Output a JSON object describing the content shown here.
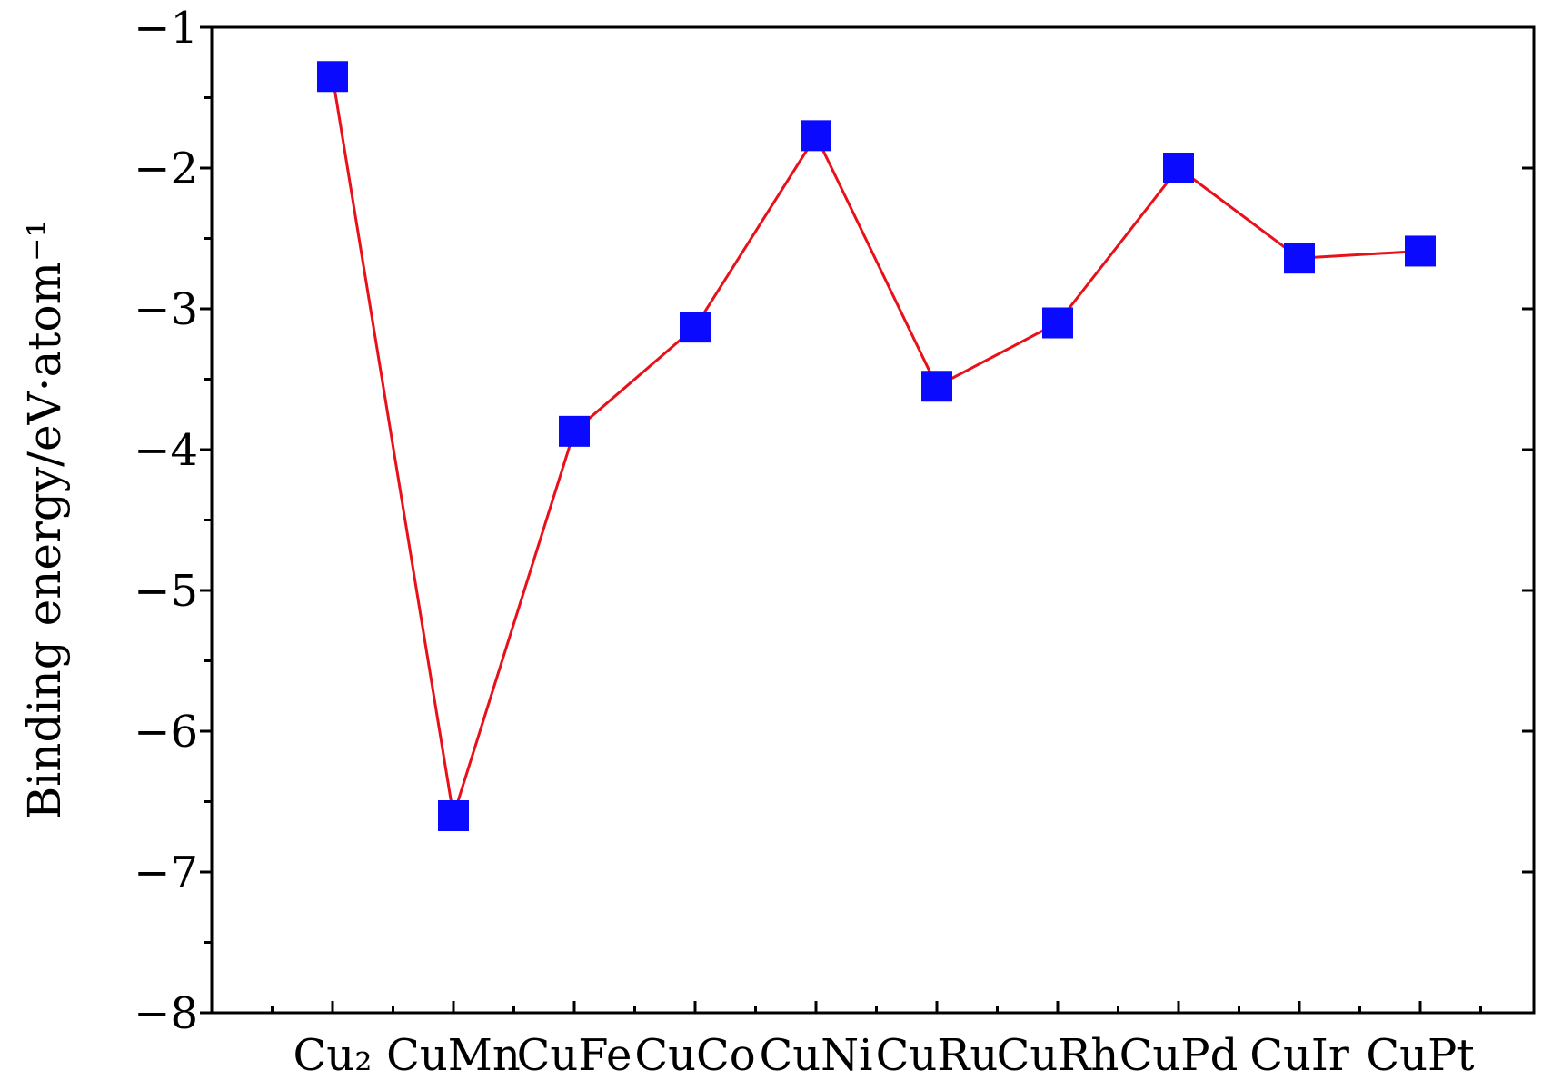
{
  "chart_data": {
    "type": "line",
    "title": "",
    "xlabel": "",
    "ylabel": "Binding energy/eV·atom⁻¹",
    "categories": [
      "Cu₂",
      "CuMn",
      "CuFe",
      "CuCo",
      "CuNi",
      "CuRu",
      "CuRh",
      "CuPd",
      "CuIr",
      "CuPt"
    ],
    "series": [
      {
        "values": [
          -1.35,
          -6.6,
          -3.87,
          -3.13,
          -1.77,
          -3.55,
          -3.1,
          -2.0,
          -2.64,
          -2.59
        ]
      }
    ],
    "ylim": [
      -8,
      -1
    ],
    "yticks": [
      "−1",
      "−2",
      "−3",
      "−4",
      "−5",
      "−6",
      "−7",
      "−8"
    ],
    "grid": false,
    "colors": {
      "line": "#e8111a",
      "marker": "#0a0aff",
      "axis": "#000000"
    }
  }
}
